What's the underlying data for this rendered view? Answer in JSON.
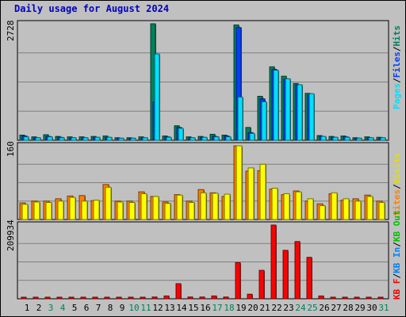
{
  "title": "Daily usage for August 2024",
  "colors": {
    "hits": "#00805c",
    "files": "#0040ff",
    "pages": "#00e0ff",
    "visits": "#ffff00",
    "sites": "#ff8000",
    "kbytes_in": "#0080ff",
    "kbytes_out": "#00c000",
    "kbytes_f": "#ff0000",
    "weekend_day": "#00805c",
    "weekday": "#000000"
  },
  "chart_data": [
    {
      "type": "bar",
      "title": "Daily usage for August 2024",
      "categories": [
        "1",
        "2",
        "3",
        "4",
        "5",
        "6",
        "7",
        "8",
        "9",
        "10",
        "11",
        "12",
        "13",
        "14",
        "15",
        "16",
        "17",
        "18",
        "19",
        "20",
        "21",
        "22",
        "23",
        "24",
        "25",
        "26",
        "27",
        "28",
        "29",
        "30",
        "31"
      ],
      "weekend_days": [
        "3",
        "4",
        "10",
        "11",
        "17",
        "18",
        "24",
        "25",
        "31"
      ],
      "ymax_label": "2728",
      "ylim": [
        0,
        2728
      ],
      "right_labels": [
        "Pages",
        "/",
        "Files",
        "/",
        "Hits"
      ],
      "series": [
        {
          "name": "Hits",
          "values": [
            120,
            80,
            130,
            90,
            80,
            80,
            90,
            100,
            60,
            60,
            80,
            2728,
            100,
            340,
            80,
            90,
            140,
            120,
            2700,
            300,
            1030,
            1720,
            1500,
            1330,
            1100,
            110,
            90,
            100,
            60,
            80,
            70
          ]
        },
        {
          "name": "Files",
          "values": [
            100,
            60,
            90,
            70,
            60,
            60,
            70,
            70,
            50,
            50,
            60,
            900,
            80,
            300,
            60,
            70,
            90,
            100,
            2640,
            180,
            970,
            1660,
            1430,
            1300,
            1060,
            90,
            70,
            80,
            50,
            60,
            60
          ]
        },
        {
          "name": "Pages",
          "values": [
            80,
            60,
            80,
            60,
            60,
            60,
            70,
            70,
            50,
            50,
            60,
            2020,
            70,
            280,
            60,
            70,
            80,
            80,
            1010,
            160,
            900,
            1640,
            1440,
            1300,
            1090,
            90,
            70,
            70,
            50,
            60,
            60
          ]
        }
      ]
    },
    {
      "type": "bar",
      "categories": [
        "1",
        "2",
        "3",
        "4",
        "5",
        "6",
        "7",
        "8",
        "9",
        "10",
        "11",
        "12",
        "13",
        "14",
        "15",
        "16",
        "17",
        "18",
        "19",
        "20",
        "21",
        "22",
        "23",
        "24",
        "25",
        "26",
        "27",
        "28",
        "29",
        "30",
        "31"
      ],
      "ymax_label": "160",
      "ylim": [
        0,
        160
      ],
      "right_labels": [
        "Visits",
        "/",
        "Sites"
      ],
      "series": [
        {
          "name": "Visits",
          "values": [
            33,
            38,
            37,
            40,
            48,
            40,
            42,
            70,
            38,
            37,
            56,
            50,
            35,
            53,
            37,
            58,
            57,
            55,
            160,
            112,
            120,
            68,
            56,
            60,
            45,
            30,
            58,
            45,
            40,
            50,
            37
          ]
        },
        {
          "name": "Sites",
          "values": [
            36,
            40,
            40,
            45,
            51,
            52,
            41,
            76,
            40,
            40,
            60,
            50,
            38,
            54,
            40,
            65,
            58,
            50,
            160,
            105,
            106,
            66,
            54,
            62,
            40,
            34,
            56,
            42,
            45,
            53,
            40
          ]
        }
      ]
    },
    {
      "type": "bar",
      "categories": [
        "1",
        "2",
        "3",
        "4",
        "5",
        "6",
        "7",
        "8",
        "9",
        "10",
        "11",
        "12",
        "13",
        "14",
        "15",
        "16",
        "17",
        "18",
        "19",
        "20",
        "21",
        "22",
        "23",
        "24",
        "25",
        "26",
        "27",
        "28",
        "29",
        "30",
        "31"
      ],
      "ymax_label": "209934",
      "ylim": [
        0,
        209934
      ],
      "right_labels": [
        "KB F",
        "/",
        "KB In",
        "/",
        "KB Out"
      ],
      "series": [
        {
          "name": "KB F",
          "values": [
            2000,
            2000,
            2000,
            2000,
            2000,
            2000,
            2000,
            4000,
            2000,
            2000,
            3000,
            5000,
            8000,
            43000,
            5000,
            5000,
            8000,
            5000,
            103000,
            13000,
            81000,
            209934,
            138000,
            163000,
            118000,
            8000,
            4000,
            4000,
            3000,
            3000,
            3000
          ]
        },
        {
          "name": "KB In",
          "values": [
            0,
            0,
            0,
            0,
            0,
            0,
            0,
            0,
            0,
            0,
            0,
            0,
            0,
            0,
            0,
            0,
            0,
            0,
            0,
            0,
            0,
            0,
            0,
            0,
            0,
            0,
            0,
            0,
            0,
            0,
            0
          ]
        },
        {
          "name": "KB Out",
          "values": [
            0,
            0,
            0,
            0,
            0,
            0,
            0,
            0,
            0,
            0,
            0,
            0,
            0,
            0,
            0,
            0,
            0,
            0,
            0,
            0,
            0,
            0,
            0,
            0,
            0,
            0,
            0,
            0,
            0,
            0,
            0
          ]
        }
      ]
    }
  ]
}
